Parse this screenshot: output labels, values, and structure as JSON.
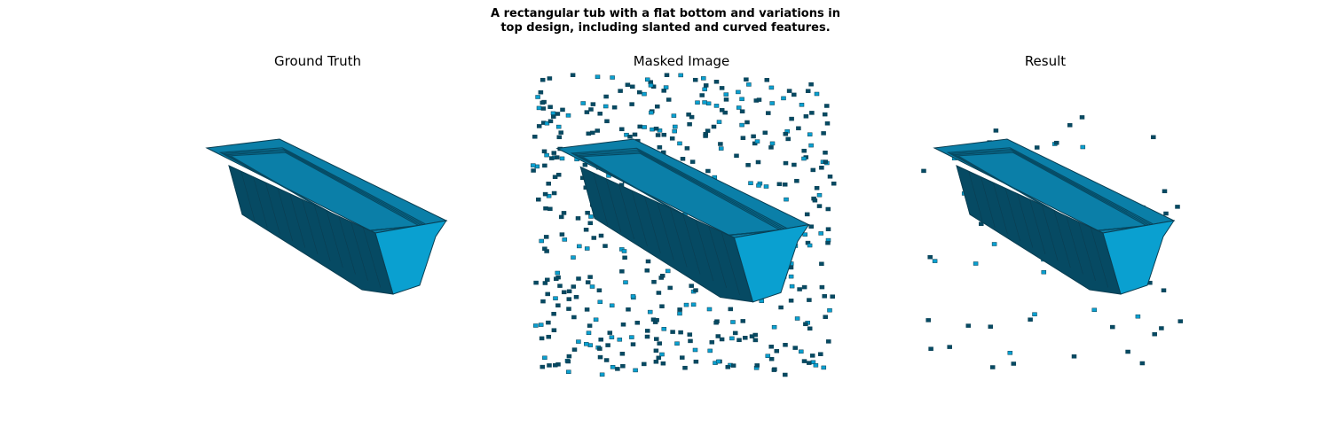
{
  "figure": {
    "title_line1": "A rectangular tub with a flat bottom and variations in",
    "title_line2": "top design, including slanted and curved features."
  },
  "panels": [
    {
      "title": "Ground Truth"
    },
    {
      "title": "Masked Image"
    },
    {
      "title": "Result"
    }
  ],
  "colors": {
    "voxel_face": "#0aa0d0",
    "voxel_top": "#0b7fa8",
    "voxel_dark": "#064a63",
    "voxel_edge": "#0a3e52"
  }
}
